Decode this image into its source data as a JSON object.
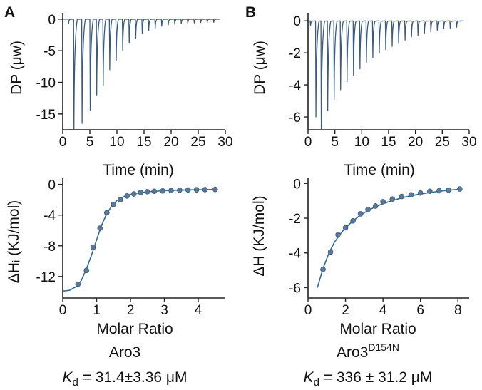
{
  "chart_data": [
    {
      "id": "A_top",
      "type": "line",
      "panel_label": "A",
      "xlabel": "Time (min)",
      "ylabel": "DP (μw)",
      "xlim": [
        0,
        30
      ],
      "ylim": [
        -17.5,
        1
      ],
      "xticks": [
        0,
        5,
        10,
        15,
        20,
        25,
        30
      ],
      "xtick_labels": [
        "0",
        "5",
        "10",
        "15",
        "20",
        "25",
        "30"
      ],
      "yticks": [
        0,
        -5,
        -10,
        -15
      ],
      "ytick_labels": [
        "0",
        "-5",
        "-10",
        "-15"
      ],
      "series": [
        {
          "baseline": 0,
          "injection_times": [
            1.0,
            2.0,
            3.5,
            5.0,
            6.2,
            7.4,
            8.6,
            9.8,
            11.0,
            12.2,
            13.4,
            14.6,
            15.8,
            17.0,
            18.2,
            19.4,
            20.6,
            21.8,
            23.0,
            24.2,
            25.4,
            26.6,
            27.8
          ],
          "peak_minima": [
            -0.7,
            -17.5,
            -16.5,
            -14.5,
            -12.0,
            -10.5,
            -8.0,
            -6.5,
            -5.0,
            -3.8,
            -3.0,
            -2.3,
            -1.8,
            -1.4,
            -1.1,
            -0.9,
            -0.8,
            -0.7,
            -0.65,
            -0.6,
            -0.55,
            -0.5,
            -0.5
          ],
          "end_time": 29
        }
      ]
    },
    {
      "id": "B_top",
      "type": "line",
      "panel_label": "B",
      "xlabel": "Time (min)",
      "ylabel": "DP (μw)",
      "xlim": [
        0,
        30
      ],
      "ylim": [
        -6.8,
        0.5
      ],
      "xticks": [
        0,
        5,
        10,
        15,
        20,
        25,
        30
      ],
      "xtick_labels": [
        "0",
        "5",
        "10",
        "15",
        "20",
        "25",
        "30"
      ],
      "yticks": [
        0,
        -2,
        -4,
        -6
      ],
      "ytick_labels": [
        "0",
        "-2",
        "-4",
        "-6"
      ],
      "series": [
        {
          "baseline": 0,
          "injection_times": [
            0.4,
            1.4,
            2.4,
            3.6,
            4.8,
            6.0,
            7.2,
            8.4,
            9.6,
            10.8,
            12.0,
            13.2,
            14.4,
            15.6,
            16.8,
            18.0,
            19.2,
            20.4,
            21.6,
            22.8,
            24.0,
            25.2,
            26.4,
            27.6
          ],
          "peak_minima": [
            -0.3,
            -6.0,
            -6.8,
            -5.6,
            -4.9,
            -4.3,
            -3.8,
            -3.4,
            -3.0,
            -2.6,
            -2.3,
            -2.0,
            -1.8,
            -1.6,
            -1.4,
            -1.2,
            -1.0,
            -0.9,
            -0.8,
            -0.7,
            -0.6,
            -0.5,
            -0.45,
            -0.4
          ],
          "end_time": 29
        }
      ]
    },
    {
      "id": "A_bottom",
      "type": "scatter",
      "xlabel": "Molar Ratio",
      "ylabel": "ΔHᵢ (KJ/mol)",
      "xlim": [
        0,
        4.8
      ],
      "ylim": [
        -14.8,
        0.8
      ],
      "xticks": [
        0,
        1,
        2,
        3,
        4
      ],
      "xtick_labels": [
        "0",
        "1",
        "2",
        "3",
        "4"
      ],
      "yticks": [
        0,
        -4,
        -8,
        -12
      ],
      "ytick_labels": [
        "0",
        "-4",
        "-8",
        "-12"
      ],
      "series": [
        {
          "points_x": [
            0.45,
            0.7,
            0.9,
            1.1,
            1.3,
            1.5,
            1.7,
            1.9,
            2.1,
            2.3,
            2.5,
            2.7,
            2.95,
            3.2,
            3.45,
            3.7,
            3.95,
            4.2,
            4.5
          ],
          "points_y": [
            -13.0,
            -11.2,
            -8.2,
            -5.7,
            -3.7,
            -2.6,
            -2.0,
            -1.5,
            -1.25,
            -1.05,
            -0.95,
            -0.9,
            -0.85,
            -0.8,
            -0.75,
            -0.72,
            -0.7,
            -0.68,
            -0.66
          ],
          "fit_x": [
            0.0,
            0.2,
            0.4,
            0.55,
            0.7,
            0.85,
            1.0,
            1.15,
            1.3,
            1.45,
            1.6,
            1.8,
            2.0,
            2.3,
            2.6,
            3.0,
            3.5,
            4.0,
            4.5
          ],
          "fit_y": [
            -13.9,
            -13.8,
            -13.3,
            -12.5,
            -11.0,
            -9.2,
            -7.2,
            -5.3,
            -3.8,
            -2.8,
            -2.1,
            -1.6,
            -1.3,
            -1.05,
            -0.93,
            -0.82,
            -0.74,
            -0.69,
            -0.65
          ]
        }
      ]
    },
    {
      "id": "B_bottom",
      "type": "scatter",
      "xlabel": "Molar Ratio",
      "ylabel": "ΔH (KJ/mol)",
      "xlim": [
        0,
        8.6
      ],
      "ylim": [
        -6.6,
        0.3
      ],
      "xticks": [
        0,
        2,
        4,
        6,
        8
      ],
      "xtick_labels": [
        "0",
        "2",
        "4",
        "6",
        "8"
      ],
      "yticks": [
        0,
        -2,
        -4,
        -6
      ],
      "ytick_labels": [
        "0",
        "-2",
        "-4",
        "-6"
      ],
      "series": [
        {
          "points_x": [
            0.8,
            1.2,
            1.6,
            2.0,
            2.4,
            2.8,
            3.2,
            3.6,
            4.0,
            4.5,
            5.0,
            5.5,
            6.0,
            6.5,
            7.0,
            7.5,
            8.1
          ],
          "points_y": [
            -4.95,
            -3.95,
            -2.95,
            -2.55,
            -2.15,
            -1.75,
            -1.5,
            -1.3,
            -1.05,
            -0.9,
            -0.75,
            -0.65,
            -0.55,
            -0.45,
            -0.42,
            -0.38,
            -0.32
          ],
          "fit_x": [
            0.5,
            0.8,
            1.1,
            1.4,
            1.8,
            2.2,
            2.7,
            3.2,
            3.8,
            4.5,
            5.2,
            6.0,
            7.0,
            8.1
          ],
          "fit_y": [
            -6.0,
            -4.9,
            -4.05,
            -3.4,
            -2.8,
            -2.35,
            -1.9,
            -1.55,
            -1.25,
            -0.98,
            -0.78,
            -0.6,
            -0.45,
            -0.33
          ]
        }
      ]
    }
  ],
  "captions": {
    "left_name": "Aro3",
    "left_k_symbol": "K",
    "left_k_sub": "d",
    "left_k_value": " = 31.4±3.36 μM",
    "right_name": "Aro3",
    "right_superscript": "D154N",
    "right_k_symbol": "K",
    "right_k_sub": "d",
    "right_k_value": " = 336 ± 31.2 μM"
  },
  "colors": {
    "trace": "#3b5a82",
    "fit": "#2f6d90",
    "points": "#5a7898",
    "axis": "#222222"
  }
}
